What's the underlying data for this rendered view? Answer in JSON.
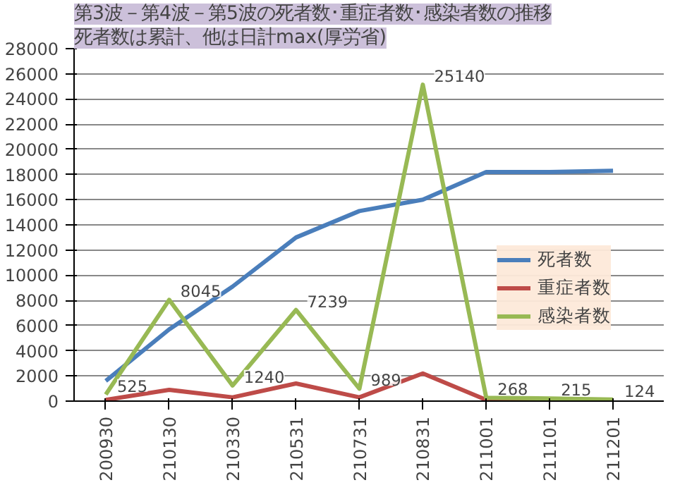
{
  "chart_data": {
    "type": "line",
    "title": "第3波－第4波－第5波の死者数･重症者数･感染者数の推移",
    "subtitle": "死者数は累計、他は日計max(厚労省)",
    "categories": [
      "200930",
      "210130",
      "210330",
      "210531",
      "210731",
      "210831",
      "211001",
      "211101",
      "211201"
    ],
    "series": [
      {
        "name": "死者数",
        "color": "#4a7ebb",
        "values": [
          1600,
          5700,
          9100,
          13000,
          15100,
          16000,
          18200,
          18200,
          18300
        ]
      },
      {
        "name": "重症者数",
        "color": "#be4b48",
        "values": [
          100,
          900,
          300,
          1400,
          300,
          2200,
          100,
          0,
          0
        ]
      },
      {
        "name": "感染者数",
        "color": "#98b954",
        "values": [
          525,
          8045,
          1240,
          7239,
          989,
          25140,
          268,
          215,
          124
        ],
        "value_labels": [
          "525",
          "8045",
          "1240",
          "7239",
          "989",
          "25140",
          "268",
          "215",
          "124"
        ]
      }
    ],
    "ylim": [
      0,
      28000
    ],
    "yticks": [
      0,
      2000,
      4000,
      6000,
      8000,
      10000,
      12000,
      14000,
      16000,
      18000,
      20000,
      22000,
      24000,
      26000,
      28000
    ],
    "grid": "y",
    "legend": "right",
    "marker": "none",
    "line_style": "solid"
  }
}
